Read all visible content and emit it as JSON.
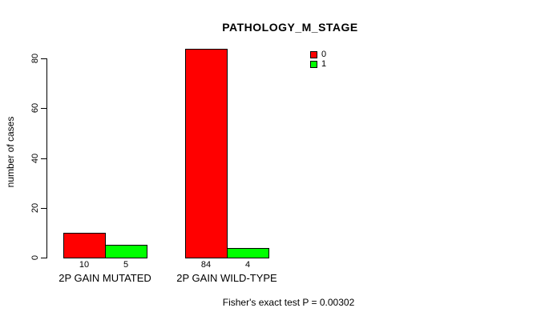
{
  "chart_data": {
    "type": "bar",
    "title": "PATHOLOGY_M_STAGE",
    "xlabel": "",
    "ylabel": "number of cases",
    "categories": [
      "2P GAIN MUTATED",
      "2P GAIN WILD-TYPE"
    ],
    "series": [
      {
        "name": "0",
        "color": "#ff0000",
        "values": [
          10,
          84
        ]
      },
      {
        "name": "1",
        "color": "#00ff00",
        "values": [
          5,
          4
        ]
      }
    ],
    "yticks": [
      0,
      20,
      40,
      60,
      80
    ],
    "ylim": [
      0,
      87
    ],
    "grid": false,
    "legend_position": "top-right",
    "annotation": "Fisher's exact test P = 0.00302"
  },
  "colors": {
    "background": "#ffffff",
    "text": "#000000",
    "bar_border": "#000000",
    "series_0": "#ff0000",
    "series_1": "#00ff00"
  }
}
